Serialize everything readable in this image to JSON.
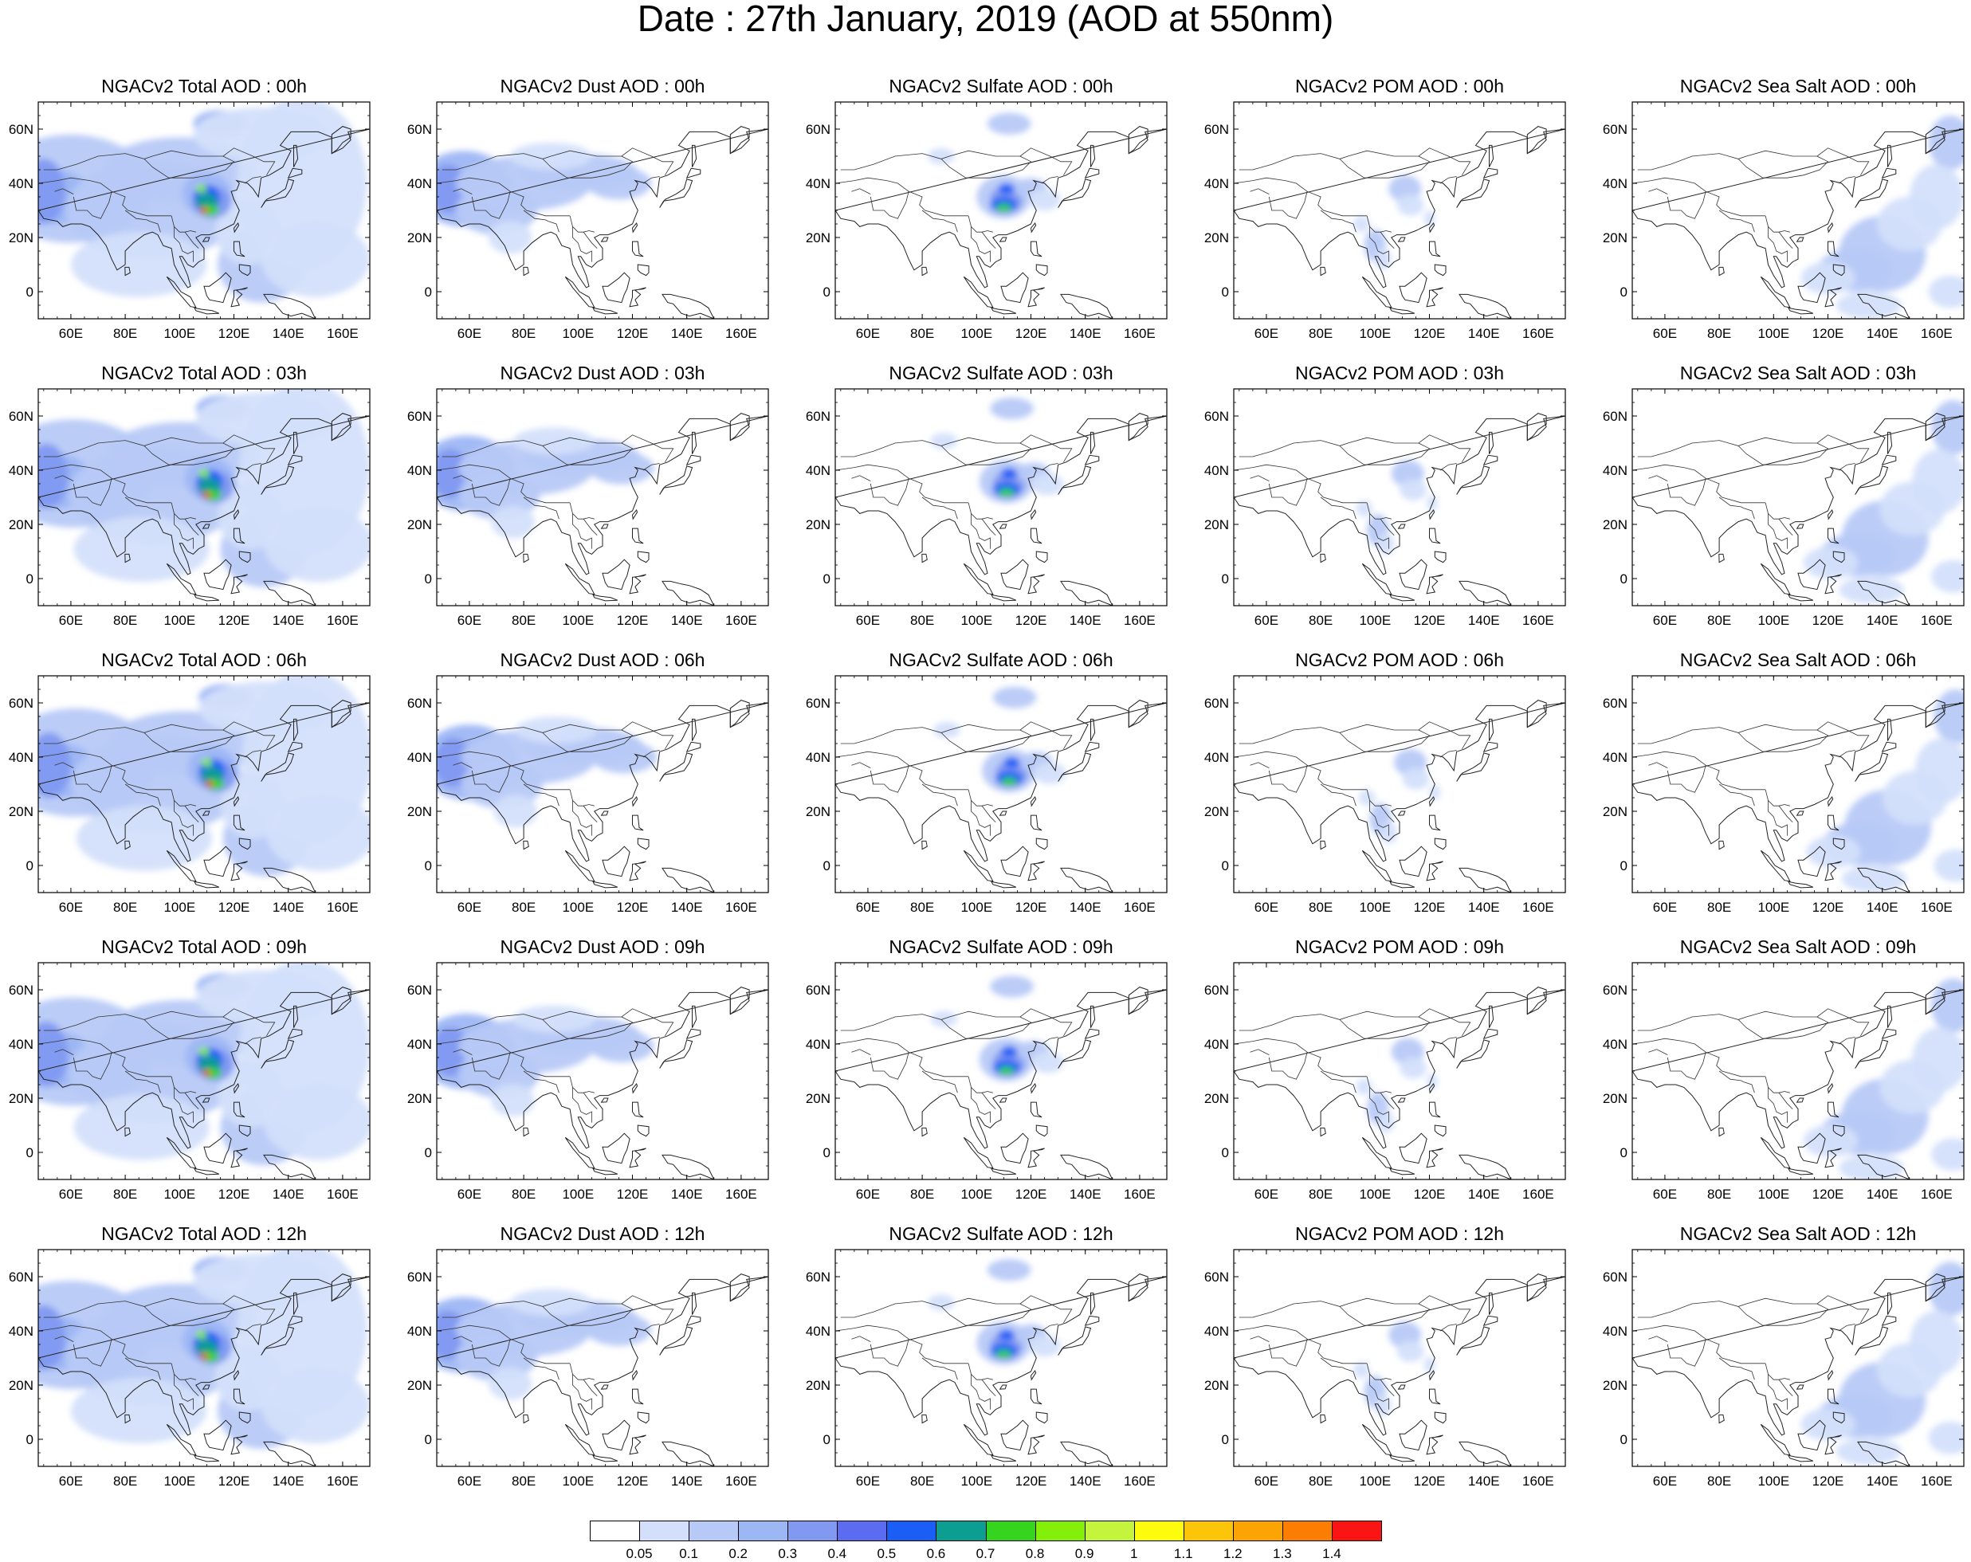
{
  "title": "Date : 27th January, 2019 (AOD at 550nm)",
  "columns": [
    "total",
    "dust",
    "sulfate",
    "pom",
    "seasalt"
  ],
  "rows": [
    "00h",
    "03h",
    "06h",
    "09h",
    "12h"
  ],
  "panel_titles": [
    [
      "NGACv2 Total AOD : 00h",
      "NGACv2 Dust AOD : 00h",
      "NGACv2 Sulfate AOD : 00h",
      "NGACv2 POM AOD : 00h",
      "NGACv2 Sea Salt AOD : 00h"
    ],
    [
      "NGACv2 Total AOD : 03h",
      "NGACv2 Dust AOD : 03h",
      "NGACv2 Sulfate AOD : 03h",
      "NGACv2 POM AOD : 03h",
      "NGACv2 Sea Salt AOD : 03h"
    ],
    [
      "NGACv2 Total AOD : 06h",
      "NGACv2 Dust AOD : 06h",
      "NGACv2 Sulfate AOD : 06h",
      "NGACv2 POM AOD : 06h",
      "NGACv2 Sea Salt AOD : 06h"
    ],
    [
      "NGACv2 Total AOD : 09h",
      "NGACv2 Dust AOD : 09h",
      "NGACv2 Sulfate AOD : 09h",
      "NGACv2 POM AOD : 09h",
      "NGACv2 Sea Salt  AOD : 09h"
    ],
    [
      "NGACv2 Total AOD  : 12h",
      "NGACv2 Dust AOD : 12h",
      "NGACv2 Sulfate AOD : 12h",
      "NGACv2 POM  AOD : 12h",
      "NGACv2 Sea Salt  AOD : 12h"
    ]
  ],
  "lat_ticks": [
    "60N",
    "40N",
    "20N",
    "0"
  ],
  "lon_ticks": [
    "60E",
    "80E",
    "100E",
    "120E",
    "140E",
    "160E"
  ],
  "map_extent": {
    "lon": [
      48,
      170
    ],
    "lat": [
      -10,
      70
    ]
  },
  "colorbar": {
    "colors": [
      "#ffffff",
      "#d4e0fb",
      "#b7c9f7",
      "#9db6f4",
      "#8199f1",
      "#5b6cf0",
      "#1a5ef6",
      "#0c9e90",
      "#35d51f",
      "#84f00a",
      "#c4f53c",
      "#fefc0d",
      "#fdc50a",
      "#fca404",
      "#fb7e02",
      "#fb1414"
    ],
    "labels": [
      "0.05",
      "0.1",
      "0.2",
      "0.3",
      "0.4",
      "0.5",
      "0.6",
      "0.7",
      "0.8",
      "0.9",
      "1",
      "1.1",
      "1.2",
      "1.3",
      "1.4"
    ]
  }
}
